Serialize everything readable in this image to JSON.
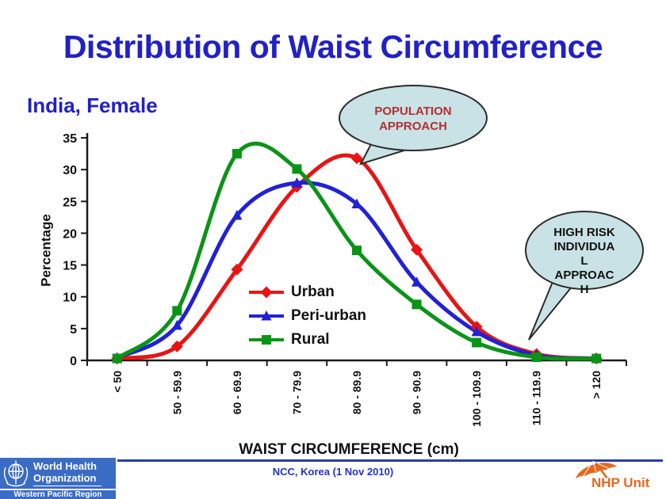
{
  "slide": {
    "title": "Distribution of Waist Circumference",
    "subtitle": "India, Female",
    "title_color": "#2121c6"
  },
  "chart_data": {
    "type": "line",
    "title": "Distribution of Waist Circumference, India, Female",
    "xlabel": "WAIST CIRCUMFERENCE (cm)",
    "ylabel": "Percentage",
    "ylim": [
      0,
      35
    ],
    "ytick_step": 5,
    "grid": "off",
    "legend_position": "inside-center",
    "categories": [
      "< 50",
      "50 - 59.9",
      "60 - 69.9",
      "70 - 79.9",
      "80 - 89.9",
      "90 - 90.9",
      "100 - 109.9",
      "110 - 119.9",
      "> 120"
    ],
    "series": [
      {
        "name": "Urban",
        "color": "#e81414",
        "marker": "diamond",
        "values": [
          0.3,
          2.2,
          14.3,
          27.3,
          31.8,
          17.4,
          5.3,
          1.0,
          0.3
        ]
      },
      {
        "name": "Peri-urban",
        "color": "#2121d6",
        "marker": "triangle",
        "values": [
          0.4,
          5.5,
          22.8,
          27.9,
          24.6,
          12.3,
          4.5,
          0.8,
          0.3
        ]
      },
      {
        "name": "Rural",
        "color": "#0a9417",
        "marker": "square",
        "values": [
          0.3,
          7.8,
          32.5,
          30.1,
          17.3,
          8.8,
          2.8,
          0.5,
          0.3
        ]
      }
    ]
  },
  "callouts": {
    "population": {
      "line1": "POPULATION",
      "line2": "APPROACH",
      "text_color": "#b23030",
      "fill": "#c9e2e6"
    },
    "high_risk": {
      "line1": "HIGH RISK",
      "line2": "INDIVIDUA",
      "line3": "L",
      "line4": "APPROAC",
      "line5": "H",
      "text_color": "#111111",
      "fill": "#c9e2e6"
    }
  },
  "footer": {
    "line_color": "#2b3f9f",
    "who": {
      "name_line1": "World Health",
      "name_line2": "Organization",
      "region": "Western Pacific Region",
      "bg": "#3a6bc5"
    },
    "credit": "NCC, Korea (1 Nov 2010)",
    "credit_color": "#2233cc",
    "nhp": {
      "label": "NHP Unit",
      "color": "#e8671b"
    }
  }
}
